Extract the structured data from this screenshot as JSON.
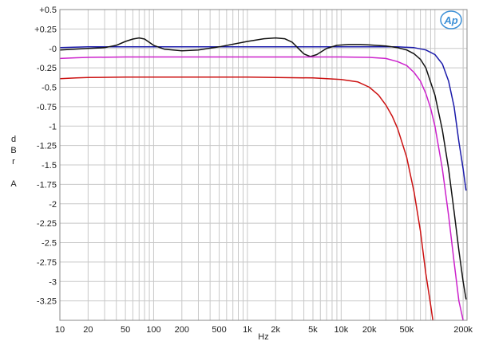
{
  "chart_data": {
    "type": "line",
    "xlabel": "Hz",
    "ylabel": [
      "d",
      "B",
      "r",
      "A"
    ],
    "logo": "Ap",
    "x_scale": "log",
    "xlim": [
      10,
      220000
    ],
    "ylim": [
      -3.5,
      0.5
    ],
    "grid": true,
    "x_ticks": [
      {
        "value": 10,
        "label": "10"
      },
      {
        "value": 20,
        "label": "20"
      },
      {
        "value": 50,
        "label": "50"
      },
      {
        "value": 100,
        "label": "100"
      },
      {
        "value": 200,
        "label": "200"
      },
      {
        "value": 500,
        "label": "500"
      },
      {
        "value": 1000,
        "label": "1k"
      },
      {
        "value": 2000,
        "label": "2k"
      },
      {
        "value": 5000,
        "label": "5k"
      },
      {
        "value": 10000,
        "label": "10k"
      },
      {
        "value": 20000,
        "label": "20k"
      },
      {
        "value": 50000,
        "label": "50k"
      },
      {
        "value": 200000,
        "label": "200k"
      }
    ],
    "y_ticks": [
      {
        "value": 0.5,
        "label": "+0.5"
      },
      {
        "value": 0.25,
        "label": "+0.25"
      },
      {
        "value": 0,
        "label": "-0"
      },
      {
        "value": -0.25,
        "label": "-0.25"
      },
      {
        "value": -0.5,
        "label": "-0.5"
      },
      {
        "value": -0.75,
        "label": "-0.75"
      },
      {
        "value": -1,
        "label": "-1"
      },
      {
        "value": -1.25,
        "label": "-1.25"
      },
      {
        "value": -1.5,
        "label": "-1.5"
      },
      {
        "value": -1.75,
        "label": "-1.75"
      },
      {
        "value": -2,
        "label": "-2"
      },
      {
        "value": -2.25,
        "label": "-2.25"
      },
      {
        "value": -2.5,
        "label": "-2.5"
      },
      {
        "value": -2.75,
        "label": "-2.75"
      },
      {
        "value": -3,
        "label": "-3"
      },
      {
        "value": -3.25,
        "label": "-3.25"
      }
    ],
    "series": [
      {
        "color": "#1a1aaa",
        "points": [
          [
            10,
            0.01
          ],
          [
            20,
            0.02
          ],
          [
            50,
            0.02
          ],
          [
            100,
            0.02
          ],
          [
            200,
            0.02
          ],
          [
            500,
            0.02
          ],
          [
            1000,
            0.02
          ],
          [
            2000,
            0.02
          ],
          [
            5000,
            0.02
          ],
          [
            10000,
            0.02
          ],
          [
            20000,
            0.02
          ],
          [
            40000,
            0.02
          ],
          [
            60000,
            0.01
          ],
          [
            80000,
            -0.02
          ],
          [
            100000,
            -0.08
          ],
          [
            120000,
            -0.2
          ],
          [
            140000,
            -0.42
          ],
          [
            160000,
            -0.75
          ],
          [
            180000,
            -1.2
          ],
          [
            200000,
            -1.55
          ],
          [
            215000,
            -1.83
          ]
        ]
      },
      {
        "color": "#111111",
        "points": [
          [
            10,
            -0.02
          ],
          [
            20,
            0.0
          ],
          [
            30,
            0.01
          ],
          [
            40,
            0.04
          ],
          [
            50,
            0.09
          ],
          [
            60,
            0.12
          ],
          [
            70,
            0.135
          ],
          [
            80,
            0.12
          ],
          [
            100,
            0.04
          ],
          [
            130,
            -0.01
          ],
          [
            200,
            -0.03
          ],
          [
            300,
            -0.02
          ],
          [
            500,
            0.02
          ],
          [
            1000,
            0.09
          ],
          [
            1500,
            0.125
          ],
          [
            2000,
            0.135
          ],
          [
            2500,
            0.125
          ],
          [
            3000,
            0.08
          ],
          [
            3500,
            0.0
          ],
          [
            4000,
            -0.07
          ],
          [
            4700,
            -0.105
          ],
          [
            5500,
            -0.08
          ],
          [
            7000,
            0.0
          ],
          [
            9000,
            0.04
          ],
          [
            12000,
            0.05
          ],
          [
            16000,
            0.05
          ],
          [
            20000,
            0.045
          ],
          [
            30000,
            0.03
          ],
          [
            40000,
            0.01
          ],
          [
            50000,
            -0.02
          ],
          [
            60000,
            -0.07
          ],
          [
            70000,
            -0.14
          ],
          [
            80000,
            -0.25
          ],
          [
            100000,
            -0.6
          ],
          [
            120000,
            -1.05
          ],
          [
            140000,
            -1.55
          ],
          [
            160000,
            -2.1
          ],
          [
            180000,
            -2.6
          ],
          [
            200000,
            -3.0
          ],
          [
            215000,
            -3.23
          ]
        ]
      },
      {
        "color": "#cc22cc",
        "points": [
          [
            10,
            -0.13
          ],
          [
            15,
            -0.12
          ],
          [
            20,
            -0.115
          ],
          [
            50,
            -0.11
          ],
          [
            100,
            -0.11
          ],
          [
            200,
            -0.11
          ],
          [
            500,
            -0.11
          ],
          [
            1000,
            -0.11
          ],
          [
            2000,
            -0.11
          ],
          [
            5000,
            -0.11
          ],
          [
            10000,
            -0.11
          ],
          [
            20000,
            -0.115
          ],
          [
            30000,
            -0.13
          ],
          [
            40000,
            -0.17
          ],
          [
            50000,
            -0.22
          ],
          [
            60000,
            -0.31
          ],
          [
            70000,
            -0.42
          ],
          [
            80000,
            -0.58
          ],
          [
            90000,
            -0.77
          ],
          [
            100000,
            -1.0
          ],
          [
            120000,
            -1.55
          ],
          [
            140000,
            -2.15
          ],
          [
            160000,
            -2.75
          ],
          [
            180000,
            -3.25
          ],
          [
            200000,
            -3.5
          ]
        ]
      },
      {
        "color": "#cc1111",
        "points": [
          [
            10,
            -0.39
          ],
          [
            15,
            -0.38
          ],
          [
            20,
            -0.375
          ],
          [
            50,
            -0.37
          ],
          [
            100,
            -0.37
          ],
          [
            200,
            -0.37
          ],
          [
            500,
            -0.37
          ],
          [
            1000,
            -0.37
          ],
          [
            2000,
            -0.375
          ],
          [
            5000,
            -0.38
          ],
          [
            10000,
            -0.4
          ],
          [
            15000,
            -0.43
          ],
          [
            20000,
            -0.5
          ],
          [
            25000,
            -0.6
          ],
          [
            30000,
            -0.73
          ],
          [
            35000,
            -0.87
          ],
          [
            40000,
            -1.03
          ],
          [
            50000,
            -1.4
          ],
          [
            60000,
            -1.85
          ],
          [
            70000,
            -2.35
          ],
          [
            80000,
            -2.9
          ],
          [
            90000,
            -3.3
          ],
          [
            95000,
            -3.5
          ]
        ]
      }
    ]
  }
}
